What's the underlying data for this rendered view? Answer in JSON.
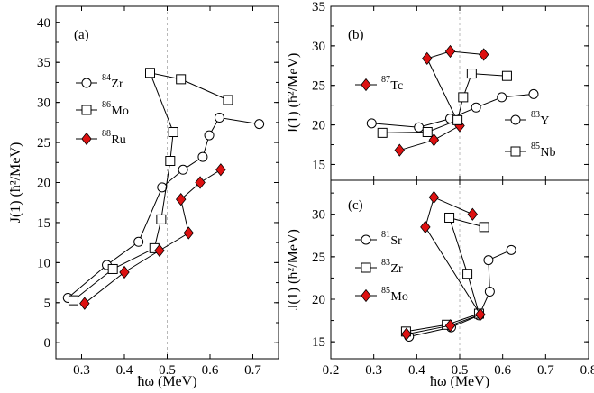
{
  "chart_data": [
    {
      "panel": "(a)",
      "type": "line",
      "xlabel": "ħω (MeV)",
      "ylabel": "J(1) (ħ²/MeV)",
      "xlim": [
        0.24,
        0.76
      ],
      "ylim": [
        -2,
        42
      ],
      "xticks": [
        "0.3",
        "0.4",
        "0.5",
        "0.6",
        "0.7"
      ],
      "yticks": [
        "0",
        "5",
        "10",
        "15",
        "20",
        "25",
        "30",
        "35",
        "40"
      ],
      "reference_x": 0.5,
      "legend_position": "upper-left",
      "series": [
        {
          "name": "84Zr",
          "mass": "84",
          "element": "Zr",
          "marker": "circle",
          "x": [
            0.268,
            0.359,
            0.433,
            0.488,
            0.537,
            0.583,
            0.598,
            0.622,
            0.715
          ],
          "y": [
            5.6,
            9.7,
            12.6,
            19.4,
            21.6,
            23.2,
            25.9,
            28.1,
            27.3
          ]
        },
        {
          "name": "86Mo",
          "mass": "86",
          "element": "Mo",
          "marker": "square",
          "x": [
            0.281,
            0.373,
            0.47,
            0.486,
            0.507,
            0.514,
            0.46,
            0.532,
            0.642
          ],
          "y": [
            5.3,
            9.2,
            11.8,
            15.4,
            22.7,
            26.3,
            33.7,
            32.9,
            30.3
          ]
        },
        {
          "name": "88Ru",
          "mass": "88",
          "element": "Ru",
          "marker": "diamond",
          "x": [
            0.307,
            0.4,
            0.482,
            0.55,
            0.532,
            0.577,
            0.625
          ],
          "y": [
            4.9,
            8.8,
            11.5,
            13.7,
            17.9,
            20.0,
            21.6
          ]
        }
      ]
    },
    {
      "panel": "(b)",
      "type": "line",
      "xlabel": "",
      "ylabel": "J(1) (ħ²/MeV)",
      "xlim": [
        0.2,
        0.8
      ],
      "ylim": [
        13,
        35
      ],
      "xticks": [],
      "yticks": [
        "15",
        "20",
        "25",
        "30",
        "35"
      ],
      "reference_x": 0.5,
      "series": [
        {
          "name": "87Tc",
          "mass": "87",
          "element": "Tc",
          "marker": "diamond",
          "x": [
            0.36,
            0.44,
            0.5,
            0.424,
            0.478,
            0.556
          ],
          "y": [
            16.8,
            18.1,
            19.9,
            28.4,
            29.3,
            28.9
          ]
        },
        {
          "name": "83Y",
          "mass": "83",
          "element": "Y",
          "marker": "circle",
          "x": [
            0.295,
            0.405,
            0.478,
            0.538,
            0.598,
            0.672
          ],
          "y": [
            20.2,
            19.7,
            20.8,
            22.2,
            23.5,
            23.9
          ]
        },
        {
          "name": "85Nb",
          "mass": "85",
          "element": "Nb",
          "marker": "square",
          "x": [
            0.32,
            0.425,
            0.495,
            0.508,
            0.528,
            0.61
          ],
          "y": [
            19.0,
            19.1,
            20.6,
            23.5,
            26.5,
            26.2
          ]
        }
      ]
    },
    {
      "panel": "(c)",
      "type": "line",
      "xlabel": "ħω (MeV)",
      "ylabel": "J(1) (ħ²/MeV)",
      "xlim": [
        0.2,
        0.8
      ],
      "ylim": [
        13,
        34
      ],
      "xticks": [
        "0.2",
        "0.3",
        "0.4",
        "0.5",
        "0.6",
        "0.7",
        "0.8"
      ],
      "yticks": [
        "15",
        "20",
        "25",
        "30"
      ],
      "reference_x": 0.5,
      "series": [
        {
          "name": "81Sr",
          "mass": "81",
          "element": "Sr",
          "marker": "circle",
          "x": [
            0.382,
            0.48,
            0.545,
            0.57,
            0.567,
            0.62
          ],
          "y": [
            15.6,
            16.7,
            18.1,
            20.9,
            24.6,
            25.8
          ]
        },
        {
          "name": "83Zr",
          "mass": "83",
          "element": "Zr",
          "marker": "square",
          "x": [
            0.375,
            0.47,
            0.545,
            0.518,
            0.476,
            0.557
          ],
          "y": [
            16.2,
            17.0,
            18.3,
            23.0,
            29.6,
            28.5
          ]
        },
        {
          "name": "85Mo",
          "mass": "85",
          "element": "Mo",
          "marker": "diamond",
          "x": [
            0.376,
            0.478,
            0.548,
            0.42,
            0.44,
            0.53
          ],
          "y": [
            15.9,
            16.9,
            18.2,
            28.5,
            32.0,
            30.0
          ]
        }
      ]
    }
  ],
  "style": {
    "open_marker_fill": "#ffffff",
    "filled_marker_color": "#dd1111",
    "stroke_color": "#000000",
    "reference_line_color": "#b8b8b8"
  }
}
